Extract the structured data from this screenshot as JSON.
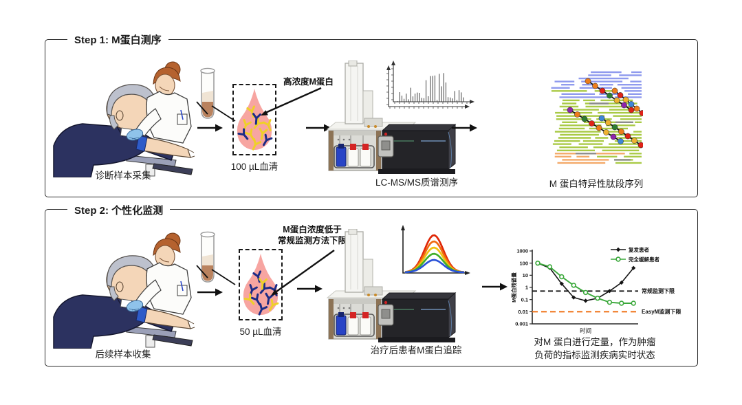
{
  "panel1": {
    "title": "Step 1: M蛋白测序",
    "patient_label": "诊断样本采集",
    "serum_label": "100 µL血清",
    "annotation": "高浓度M蛋白",
    "instrument_label": "LC-MS/MS质谱测序",
    "result_label": "M 蛋白特异性肽段序列"
  },
  "panel2": {
    "title": "Step 2: 个性化监测",
    "patient_label": "后续样本收集",
    "serum_label": "50 µL血清",
    "annotation_line1": "M蛋白浓度低于",
    "annotation_line2": "常规监测方法下限",
    "instrument_label": "治疗后患者M蛋白追踪",
    "caption_line1": "对M 蛋白进行定量，作为肿瘤",
    "caption_line2": "负荷的指标监测疾病实时状态"
  },
  "icons": {
    "flow_arrow": "arrow-right",
    "annotation_arrow": "arrow-down-left"
  },
  "palette": {
    "droplet_pink": "#F7A5A1",
    "antibody_yellow": "#EFD028",
    "antibody_navy": "#1C2C86",
    "peptide_blue": "#8F9AEE",
    "peptide_green": "#A9CA45",
    "peptide_orange": "#F3A968",
    "serum_brown": "#B9825E",
    "chart_green": "#3AA83A",
    "threshold_orange": "#F07820"
  },
  "chart_data": {
    "type": "line",
    "title": "",
    "xlabel": "时间",
    "ylabel": "M蛋白残留量",
    "yscale": "log",
    "ylim": [
      0.001,
      1000
    ],
    "ytick_labels": [
      "1000",
      "100",
      "10",
      "1",
      "0.1",
      "0.01",
      "0.001"
    ],
    "x": [
      1,
      2,
      3,
      4,
      5,
      6,
      7,
      8,
      9
    ],
    "series": [
      {
        "name": "复发患者",
        "color": "#141414",
        "marker": "diamond",
        "values": [
          100,
          40,
          2,
          0.15,
          0.08,
          0.13,
          0.5,
          2.5,
          40
        ]
      },
      {
        "name": "完全缓解患者",
        "color": "#3AA83A",
        "marker": "circle-open",
        "values": [
          100,
          50,
          7.5,
          1.5,
          0.38,
          0.13,
          0.06,
          0.05,
          0.05
        ]
      }
    ],
    "thresholds": [
      {
        "label": "常规监测下限",
        "value": 0.5,
        "color": "#141414",
        "style": "dashed"
      },
      {
        "label": "EasyM监测下限",
        "value": 0.01,
        "color": "#F07820",
        "style": "dashed"
      }
    ],
    "legend_position": "top-right",
    "grid": false
  }
}
